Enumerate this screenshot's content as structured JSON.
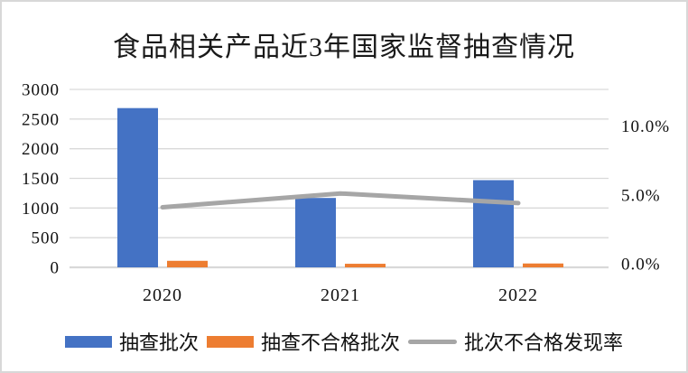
{
  "title": "食品相关产品近3年国家监督抽查情况",
  "colors": {
    "bar_sampled": "#4472C4",
    "bar_failed": "#ED7D31",
    "line_rate": "#A6A6A6",
    "gridline": "#D9D9D9",
    "axis_baseline": "#D9D9D9",
    "text": "#111111",
    "page_border": "#D8D8D8"
  },
  "chart_data": {
    "type": "bar",
    "subtype": "bar+line combo, dual axis",
    "title": "食品相关产品近3年国家监督抽查情况",
    "categories": [
      "2020",
      "2021",
      "2022"
    ],
    "series": [
      {
        "name": "抽查批次",
        "type": "bar",
        "axis": "left",
        "color": "#4472C4",
        "values": [
          2685,
          1170,
          1470
        ]
      },
      {
        "name": "抽查不合格批次",
        "type": "bar",
        "axis": "left",
        "color": "#ED7D31",
        "values": [
          110,
          60,
          65
        ]
      },
      {
        "name": "批次不合格发现率",
        "type": "line",
        "axis": "right",
        "color": "#A6A6A6",
        "unit": "%",
        "values": [
          4.1,
          5.1,
          4.4
        ]
      }
    ],
    "left_axis": {
      "min": 0,
      "max": 3000,
      "step": 500,
      "tick_labels": [
        "3000",
        "2500",
        "2000",
        "1500",
        "1000",
        "500",
        "0"
      ]
    },
    "right_axis": {
      "ticks_pct": [
        10,
        5,
        0
      ],
      "tick_labels": [
        "10.0%",
        "5.0%",
        "0.0%"
      ]
    },
    "grid": true,
    "legend_position": "bottom",
    "xlabel": "",
    "ylabel": ""
  }
}
